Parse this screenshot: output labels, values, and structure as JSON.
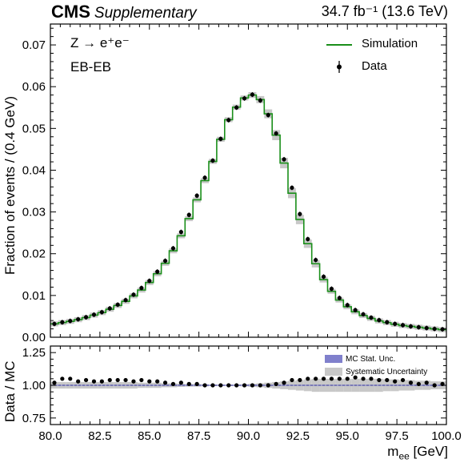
{
  "header": {
    "experiment": "CMS",
    "tag": "Supplementary",
    "lumi": "34.7 fb⁻¹ (13.6 TeV)"
  },
  "annotations": {
    "process": "Z → e⁺e⁻",
    "category": "EB-EB"
  },
  "legend": {
    "simulation": "Simulation",
    "data": "Data",
    "mc_stat": "MC Stat. Unc.",
    "syst": "Systematic Uncertainty"
  },
  "colors": {
    "simulation": "#1a8f1a",
    "data": "#000000",
    "syst_band": "#c8c8c8",
    "mc_stat_band": "#8080cc"
  },
  "chart_data": [
    {
      "type": "line",
      "name": "main",
      "ylabel": "Fraction of events / (0.4 GeV)",
      "xlim": [
        80,
        100
      ],
      "ylim": [
        0,
        0.075
      ],
      "yticks": [
        "0.00",
        "0.01",
        "0.02",
        "0.03",
        "0.04",
        "0.05",
        "0.06",
        "0.07"
      ],
      "bin_width": 0.4,
      "x": [
        80.2,
        80.6,
        81.0,
        81.4,
        81.8,
        82.2,
        82.6,
        83.0,
        83.4,
        83.8,
        84.2,
        84.6,
        85.0,
        85.4,
        85.8,
        86.2,
        86.6,
        87.0,
        87.4,
        87.8,
        88.2,
        88.6,
        89.0,
        89.4,
        89.8,
        90.2,
        90.6,
        91.0,
        91.4,
        91.8,
        92.2,
        92.6,
        93.0,
        93.4,
        93.8,
        94.2,
        94.6,
        95.0,
        95.4,
        95.8,
        96.2,
        96.6,
        97.0,
        97.4,
        97.8,
        98.2,
        98.6,
        99.0,
        99.4,
        99.8
      ],
      "series": [
        {
          "name": "Simulation",
          "values": [
            0.0032,
            0.0035,
            0.0038,
            0.0042,
            0.0047,
            0.0053,
            0.0059,
            0.0067,
            0.0076,
            0.0086,
            0.0099,
            0.0113,
            0.0131,
            0.0152,
            0.0177,
            0.0207,
            0.0243,
            0.0284,
            0.0329,
            0.0375,
            0.0421,
            0.0474,
            0.0521,
            0.0551,
            0.0573,
            0.058,
            0.0569,
            0.0535,
            0.0484,
            0.0417,
            0.0345,
            0.0282,
            0.0224,
            0.0176,
            0.0138,
            0.011,
            0.0089,
            0.0073,
            0.0061,
            0.0052,
            0.0045,
            0.0039,
            0.0035,
            0.0031,
            0.0028,
            0.0026,
            0.0024,
            0.0022,
            0.002,
            0.0018
          ]
        },
        {
          "name": "Data",
          "values": [
            0.0032,
            0.0036,
            0.0039,
            0.0043,
            0.0048,
            0.0054,
            0.006,
            0.0069,
            0.0078,
            0.0089,
            0.0102,
            0.0118,
            0.0135,
            0.0157,
            0.0183,
            0.0213,
            0.0252,
            0.0293,
            0.0339,
            0.0382,
            0.0423,
            0.0475,
            0.052,
            0.055,
            0.0572,
            0.0581,
            0.0567,
            0.0532,
            0.0488,
            0.0426,
            0.0358,
            0.0295,
            0.0235,
            0.0185,
            0.0145,
            0.0116,
            0.0094,
            0.0077,
            0.0065,
            0.0055,
            0.0047,
            0.0041,
            0.0036,
            0.0032,
            0.0029,
            0.0026,
            0.0024,
            0.0022,
            0.002,
            0.0019
          ]
        }
      ]
    },
    {
      "type": "scatter",
      "name": "ratio",
      "ylabel": "Data / MC",
      "xlabel": "m",
      "xlabel_sub": "ee",
      "xlabel_unit": " [GeV]",
      "xlim": [
        80,
        100
      ],
      "ylim": [
        0.7,
        1.3
      ],
      "yticks": [
        "0.75",
        "1.00",
        "1.25"
      ],
      "xticks": [
        "80.0",
        "82.5",
        "85.0",
        "87.5",
        "90.0",
        "92.5",
        "95.0",
        "97.5",
        "100.0"
      ],
      "x": [
        80.2,
        80.6,
        81.0,
        81.4,
        81.8,
        82.2,
        82.6,
        83.0,
        83.4,
        83.8,
        84.2,
        84.6,
        85.0,
        85.4,
        85.8,
        86.2,
        86.6,
        87.0,
        87.4,
        87.8,
        88.2,
        88.6,
        89.0,
        89.4,
        89.8,
        90.2,
        90.6,
        91.0,
        91.4,
        91.8,
        92.2,
        92.6,
        93.0,
        93.4,
        93.8,
        94.2,
        94.6,
        95.0,
        95.4,
        95.8,
        96.2,
        96.6,
        97.0,
        97.4,
        97.8,
        98.2,
        98.6,
        99.0,
        99.4,
        99.8
      ],
      "ratio": [
        1.02,
        1.05,
        1.05,
        1.03,
        1.04,
        1.03,
        1.03,
        1.04,
        1.04,
        1.04,
        1.03,
        1.04,
        1.03,
        1.03,
        1.02,
        1.01,
        1.02,
        1.01,
        1.01,
        1.0,
        1.0,
        1.0,
        1.0,
        1.0,
        1.0,
        1.0,
        1.0,
        1.0,
        1.01,
        1.02,
        1.04,
        1.04,
        1.05,
        1.05,
        1.05,
        1.05,
        1.05,
        1.05,
        1.06,
        1.05,
        1.05,
        1.04,
        1.04,
        1.03,
        1.04,
        1.02,
        1.01,
        1.02,
        1.0,
        1.01
      ],
      "syst_halfwidth": [
        0.025,
        0.025,
        0.025,
        0.025,
        0.025,
        0.025,
        0.025,
        0.025,
        0.025,
        0.025,
        0.025,
        0.02,
        0.02,
        0.02,
        0.015,
        0.015,
        0.012,
        0.01,
        0.01,
        0.008,
        0.006,
        0.005,
        0.005,
        0.006,
        0.008,
        0.012,
        0.015,
        0.02,
        0.025,
        0.03,
        0.035,
        0.04,
        0.045,
        0.05,
        0.05,
        0.05,
        0.05,
        0.05,
        0.05,
        0.05,
        0.05,
        0.05,
        0.045,
        0.045,
        0.04,
        0.04,
        0.035,
        0.035,
        0.03,
        0.03
      ],
      "mc_stat_halfwidth": 0.004
    }
  ]
}
